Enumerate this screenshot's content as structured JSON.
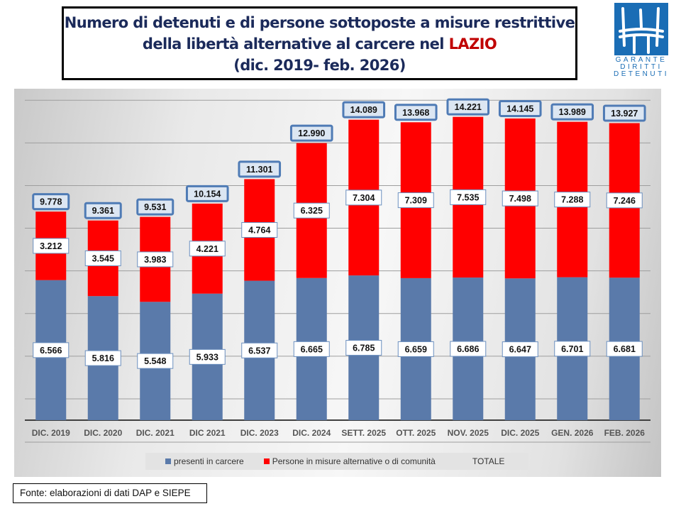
{
  "header": {
    "title_line1": "Numero di detenuti e di persone sottoposte a misure restrittive",
    "title_line2_prefix": "della libertà alternative al carcere nel ",
    "title_line2_highlight": "LAZIO",
    "title_line3": "(dic. 2019- feb. 2026)",
    "highlight_color": "#c00000"
  },
  "logo": {
    "line1": "GARANTE",
    "line2": "DIRITTI",
    "line3": "DETENUTI",
    "color": "#1a6db5"
  },
  "chart_data": {
    "type": "bar",
    "stacked": true,
    "title": "Numero di detenuti e di persone sottoposte a misure restrittive della libertà alternative al carcere nel LAZIO (dic. 2019- feb. 2026)",
    "xlabel": "",
    "ylabel": "",
    "ylim": [
      0,
      15500
    ],
    "gridlines": [
      1000,
      3000,
      5000,
      7000,
      9000,
      11000,
      13000,
      15000
    ],
    "grid": true,
    "legend_position": "bottom",
    "categories": [
      "DIC. 2019",
      "DIC. 2020",
      "DIC. 2021",
      "DIC 2021",
      "DIC. 2023",
      "DIC. 2024",
      "SETT. 2025",
      "OTT. 2025",
      "NOV. 2025",
      "DIC. 2025",
      "GEN. 2026",
      "FEB. 2026"
    ],
    "series": [
      {
        "name": "presenti in carcere",
        "color": "#5a7aaa",
        "values": [
          6566,
          5816,
          5548,
          5933,
          6537,
          6665,
          6785,
          6659,
          6686,
          6647,
          6701,
          6681
        ],
        "labels": [
          "6.566",
          "5.816",
          "5.548",
          "5.933",
          "6.537",
          "6.665",
          "6.785",
          "6.659",
          "6.686",
          "6.647",
          "6.701",
          "6.681"
        ]
      },
      {
        "name": "Persone in misure alternative o di comunità",
        "color": "#ff0000",
        "values": [
          3212,
          3545,
          3983,
          4221,
          4764,
          6325,
          7304,
          7309,
          7535,
          7498,
          7288,
          7246
        ],
        "labels": [
          "3.212",
          "3.545",
          "3.983",
          "4.221",
          "4.764",
          "6.325",
          "7.304",
          "7.309",
          "7.535",
          "7.498",
          "7.288",
          "7.246"
        ]
      },
      {
        "name": "TOTALE",
        "values": [
          9778,
          9361,
          9531,
          10154,
          11301,
          12990,
          14089,
          13968,
          14221,
          14145,
          13989,
          13927
        ],
        "labels": [
          "9.778",
          "9.361",
          "9.531",
          "10.154",
          "11.301",
          "12.990",
          "14.089",
          "13.968",
          "14.221",
          "14.145",
          "13.989",
          "13.927"
        ]
      }
    ]
  },
  "legend": {
    "items": [
      {
        "label": "presenti in carcere",
        "color": "#5a7aaa"
      },
      {
        "label": "Persone in misure alternative o di comunità",
        "color": "#ff0000"
      },
      {
        "label": "TOTALE",
        "color": ""
      }
    ]
  },
  "source": "Fonte: elaborazioni di dati DAP e SIEPE"
}
